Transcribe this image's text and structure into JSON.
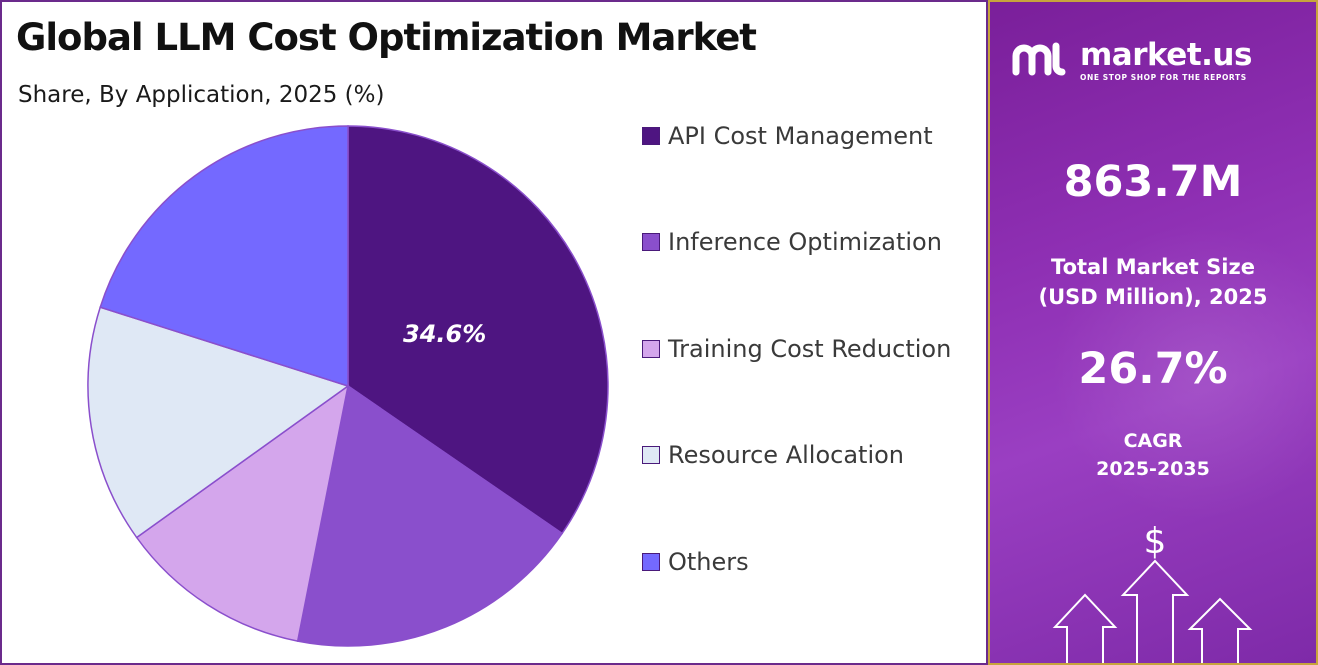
{
  "title": "Global LLM Cost Optimization Market",
  "subtitle": "Share, By Application, 2025 (%)",
  "chart_data": {
    "type": "pie",
    "title": "Global LLM Cost Optimization Market",
    "subtitle": "Share, By Application, 2025 (%)",
    "categories": [
      "API Cost Management",
      "Inference Optimization",
      "Training Cost Reduction",
      "Resource Allocation",
      "Others"
    ],
    "values": [
      34.6,
      18.5,
      12.0,
      14.8,
      20.1
    ],
    "colors": [
      "#4e1581",
      "#8a4fcc",
      "#d4a6ec",
      "#dfe8f5",
      "#7469ff"
    ],
    "labeled_value": "34.6%",
    "legend_position": "right"
  },
  "legend": [
    {
      "label": "API Cost Management",
      "color": "#4e1581"
    },
    {
      "label": "Inference Optimization",
      "color": "#8a4fcc"
    },
    {
      "label": "Training Cost Reduction",
      "color": "#d4a6ec"
    },
    {
      "label": "Resource Allocation",
      "color": "#dfe8f5"
    },
    {
      "label": "Others",
      "color": "#7469ff"
    }
  ],
  "brand": {
    "name": "market.us",
    "tagline": "ONE STOP SHOP FOR THE REPORTS"
  },
  "stats": {
    "market_size_value": "863.7M",
    "market_size_label_line1": "Total Market Size",
    "market_size_label_line2": "(USD Million), 2025",
    "cagr_value": "26.7%",
    "cagr_label_line1": "CAGR",
    "cagr_label_line2": "2025-2035"
  },
  "decor": {
    "dollar_symbol": "$",
    "icon": "dollar-growth-arrows-icon"
  }
}
